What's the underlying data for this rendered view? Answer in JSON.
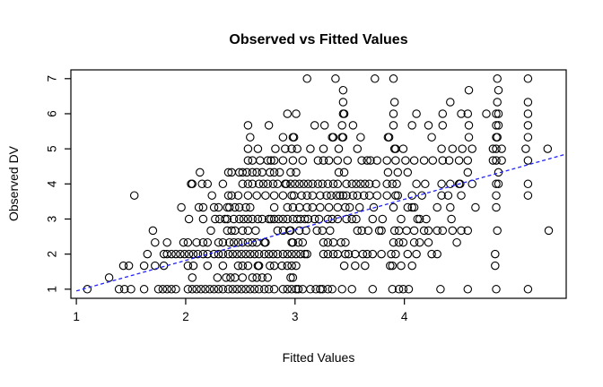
{
  "chart_data": {
    "type": "scatter",
    "title": "Observed vs Fitted Values",
    "xlabel": "Fitted Values",
    "ylabel": "Observed DV",
    "xlim": [
      0.95,
      5.48
    ],
    "ylim": [
      0.74,
      7.25
    ],
    "xticks": [
      1,
      2,
      3,
      4
    ],
    "yticks": [
      1,
      2,
      3,
      4,
      5,
      6,
      7
    ],
    "grid": false,
    "legend": "none",
    "point_style": {
      "shape": "open-circle",
      "color": "#000000",
      "radius": 4.2
    },
    "reference_line": {
      "x1": 1.0,
      "y1": 0.95,
      "x2": 5.48,
      "y2": 4.85,
      "color": "#2222ff",
      "style": "dashed"
    },
    "bands": [
      {
        "observed": 1.0,
        "fitted": [
          1.1,
          1.39,
          1.44,
          1.5,
          1.62,
          1.75,
          1.79,
          1.83,
          1.87,
          1.91,
          2.02,
          2.06,
          2.1,
          2.14,
          2.18,
          2.22,
          2.26,
          2.3,
          2.34,
          2.39,
          2.43,
          2.47,
          2.51,
          2.55,
          2.59,
          2.63,
          2.67,
          2.72,
          2.76,
          2.81,
          2.89,
          2.93,
          2.97,
          3.01,
          3.03,
          3.07,
          3.14,
          3.19,
          3.23,
          3.25,
          3.3,
          3.34,
          3.43,
          3.52,
          3.71,
          3.89,
          3.95,
          3.99,
          4.04,
          4.33,
          4.58,
          4.84,
          5.13
        ]
      },
      {
        "observed": 1.33,
        "fitted": [
          1.3,
          2.06,
          2.29,
          2.37,
          2.41,
          2.45,
          2.52,
          2.61,
          2.65,
          2.7,
          2.75,
          2.96,
          2.98
        ]
      },
      {
        "observed": 1.67,
        "fitted": [
          1.43,
          1.48,
          1.62,
          1.72,
          1.8,
          2.02,
          2.07,
          2.2,
          2.34,
          2.48,
          2.52,
          2.57,
          2.66,
          2.67,
          2.77,
          2.81,
          2.88,
          2.93,
          2.97,
          3.01,
          3.45,
          3.55,
          3.64,
          3.87,
          3.89,
          3.97,
          4.07,
          4.83
        ]
      },
      {
        "observed": 2.0,
        "fitted": [
          1.65,
          1.8,
          1.83,
          1.87,
          1.91,
          1.95,
          1.99,
          2.03,
          2.07,
          2.11,
          2.16,
          2.2,
          2.26,
          2.3,
          2.34,
          2.39,
          2.43,
          2.47,
          2.51,
          2.55,
          2.59,
          2.63,
          2.67,
          2.72,
          2.76,
          2.8,
          2.84,
          2.89,
          2.93,
          2.97,
          3.01,
          3.05,
          3.09,
          3.11,
          3.26,
          3.3,
          3.35,
          3.39,
          3.46,
          3.49,
          3.55,
          3.62,
          3.66,
          3.71,
          3.79,
          3.88,
          3.92,
          4.03,
          4.11,
          4.25,
          4.3,
          4.83
        ]
      },
      {
        "observed": 2.33,
        "fitted": [
          1.72,
          1.83,
          1.98,
          2.02,
          2.1,
          2.16,
          2.2,
          2.3,
          2.34,
          2.4,
          2.44,
          2.48,
          2.52,
          2.57,
          2.61,
          2.65,
          2.72,
          2.73,
          2.97,
          2.98,
          3.03,
          3.07,
          3.26,
          3.3,
          3.35,
          3.42,
          3.46,
          3.9,
          3.95,
          3.99,
          4.09,
          4.14,
          4.22,
          4.48
        ]
      },
      {
        "observed": 2.67,
        "fitted": [
          1.7,
          2.23,
          2.38,
          2.42,
          2.45,
          2.52,
          2.57,
          2.64,
          2.84,
          2.89,
          2.95,
          2.96,
          3.04,
          3.1,
          3.2,
          3.25,
          3.32,
          3.57,
          3.61,
          3.67,
          3.77,
          3.79,
          3.91,
          3.95,
          4.02,
          4.09,
          4.18,
          4.22,
          4.3,
          4.35,
          4.44,
          4.52,
          4.58,
          4.85,
          5.32
        ]
      },
      {
        "observed": 3.0,
        "fitted": [
          2.03,
          2.16,
          2.27,
          2.31,
          2.36,
          2.38,
          2.44,
          2.49,
          2.53,
          2.57,
          2.61,
          2.66,
          2.7,
          2.76,
          2.78,
          2.81,
          2.85,
          2.89,
          2.93,
          2.98,
          3.02,
          3.05,
          3.09,
          3.12,
          3.18,
          3.22,
          3.3,
          3.34,
          3.39,
          3.47,
          3.52,
          3.56,
          3.71,
          3.8,
          3.97,
          4.12,
          4.14,
          4.2,
          4.43
        ]
      },
      {
        "observed": 3.33,
        "fitted": [
          1.96,
          2.12,
          2.16,
          2.26,
          2.3,
          2.38,
          2.4,
          2.45,
          2.49,
          2.55,
          2.59,
          2.81,
          2.93,
          2.98,
          3.04,
          3.11,
          3.16,
          3.23,
          3.31,
          3.39,
          3.46,
          3.5,
          3.59,
          3.72,
          3.9,
          4.03,
          4.07,
          4.09,
          4.3,
          4.42,
          4.65,
          4.84
        ]
      },
      {
        "observed": 3.67,
        "fitted": [
          1.53,
          2.24,
          2.39,
          2.42,
          2.48,
          2.57,
          2.65,
          2.73,
          2.81,
          2.89,
          2.97,
          2.99,
          3.06,
          3.11,
          3.16,
          3.23,
          3.29,
          3.33,
          3.38,
          3.41,
          3.44,
          3.47,
          3.53,
          3.57,
          3.63,
          3.68,
          3.75,
          3.84,
          3.92,
          3.94,
          4.07,
          4.16,
          4.34,
          4.4,
          4.52,
          4.84,
          5.13
        ]
      },
      {
        "observed": 4.0,
        "fitted": [
          2.05,
          2.06,
          2.15,
          2.2,
          2.34,
          2.52,
          2.57,
          2.61,
          2.67,
          2.71,
          2.75,
          2.8,
          2.84,
          2.91,
          2.92,
          2.96,
          3.0,
          3.04,
          3.08,
          3.12,
          3.16,
          3.21,
          3.25,
          3.3,
          3.35,
          3.39,
          3.47,
          3.52,
          3.56,
          3.6,
          3.64,
          3.68,
          3.74,
          3.84,
          3.89,
          3.93,
          4.11,
          4.19,
          4.34,
          4.42,
          4.5,
          4.51,
          4.62,
          4.84,
          4.86,
          5.13
        ]
      },
      {
        "observed": 4.33,
        "fitted": [
          2.13,
          2.39,
          2.42,
          2.49,
          2.52,
          2.56,
          2.61,
          2.65,
          2.7,
          2.77,
          2.81,
          2.86,
          2.96,
          3.01,
          3.4,
          3.45,
          3.85,
          3.94,
          4.03,
          4.58,
          4.86
        ]
      },
      {
        "observed": 4.67,
        "fitted": [
          2.57,
          2.61,
          2.68,
          2.75,
          2.78,
          2.81,
          2.89,
          2.98,
          3.07,
          3.21,
          3.26,
          3.31,
          3.39,
          3.48,
          3.61,
          3.66,
          3.69,
          3.75,
          3.84,
          3.92,
          4.01,
          4.09,
          4.18,
          4.26,
          4.35,
          4.41,
          4.5,
          4.58,
          4.81,
          4.84,
          4.89,
          5.13
        ]
      },
      {
        "observed": 5.0,
        "fitted": [
          2.57,
          2.66,
          2.82,
          2.91,
          2.97,
          3.02,
          3.14,
          3.26,
          3.4,
          3.57,
          3.91,
          3.92,
          3.99,
          4.34,
          4.44,
          4.53,
          4.62,
          4.81,
          4.84,
          4.89,
          5.11,
          5.31
        ]
      },
      {
        "observed": 5.33,
        "fitted": [
          2.59,
          2.89,
          2.98,
          2.99,
          3.34,
          3.35,
          3.43,
          3.44,
          3.6,
          3.85,
          3.86,
          4.25,
          4.59,
          4.84,
          4.85,
          5.13
        ]
      },
      {
        "observed": 5.67,
        "fitted": [
          2.57,
          2.76,
          3.18,
          3.27,
          3.43,
          3.53,
          3.9,
          4.07,
          4.22,
          4.35,
          4.59,
          4.84,
          4.86,
          5.13
        ]
      },
      {
        "observed": 6.0,
        "fitted": [
          2.93,
          3.01,
          3.44,
          3.45,
          3.9,
          4.11,
          4.35,
          4.52,
          4.58,
          4.75,
          4.84,
          4.86,
          5.13
        ]
      },
      {
        "observed": 6.33,
        "fitted": [
          3.44,
          3.91,
          4.42,
          4.85,
          5.13
        ]
      },
      {
        "observed": 6.67,
        "fitted": [
          3.44,
          4.59,
          4.86
        ]
      },
      {
        "observed": 7.0,
        "fitted": [
          3.11,
          3.37,
          3.73,
          3.9,
          4.85,
          5.13
        ]
      }
    ]
  }
}
